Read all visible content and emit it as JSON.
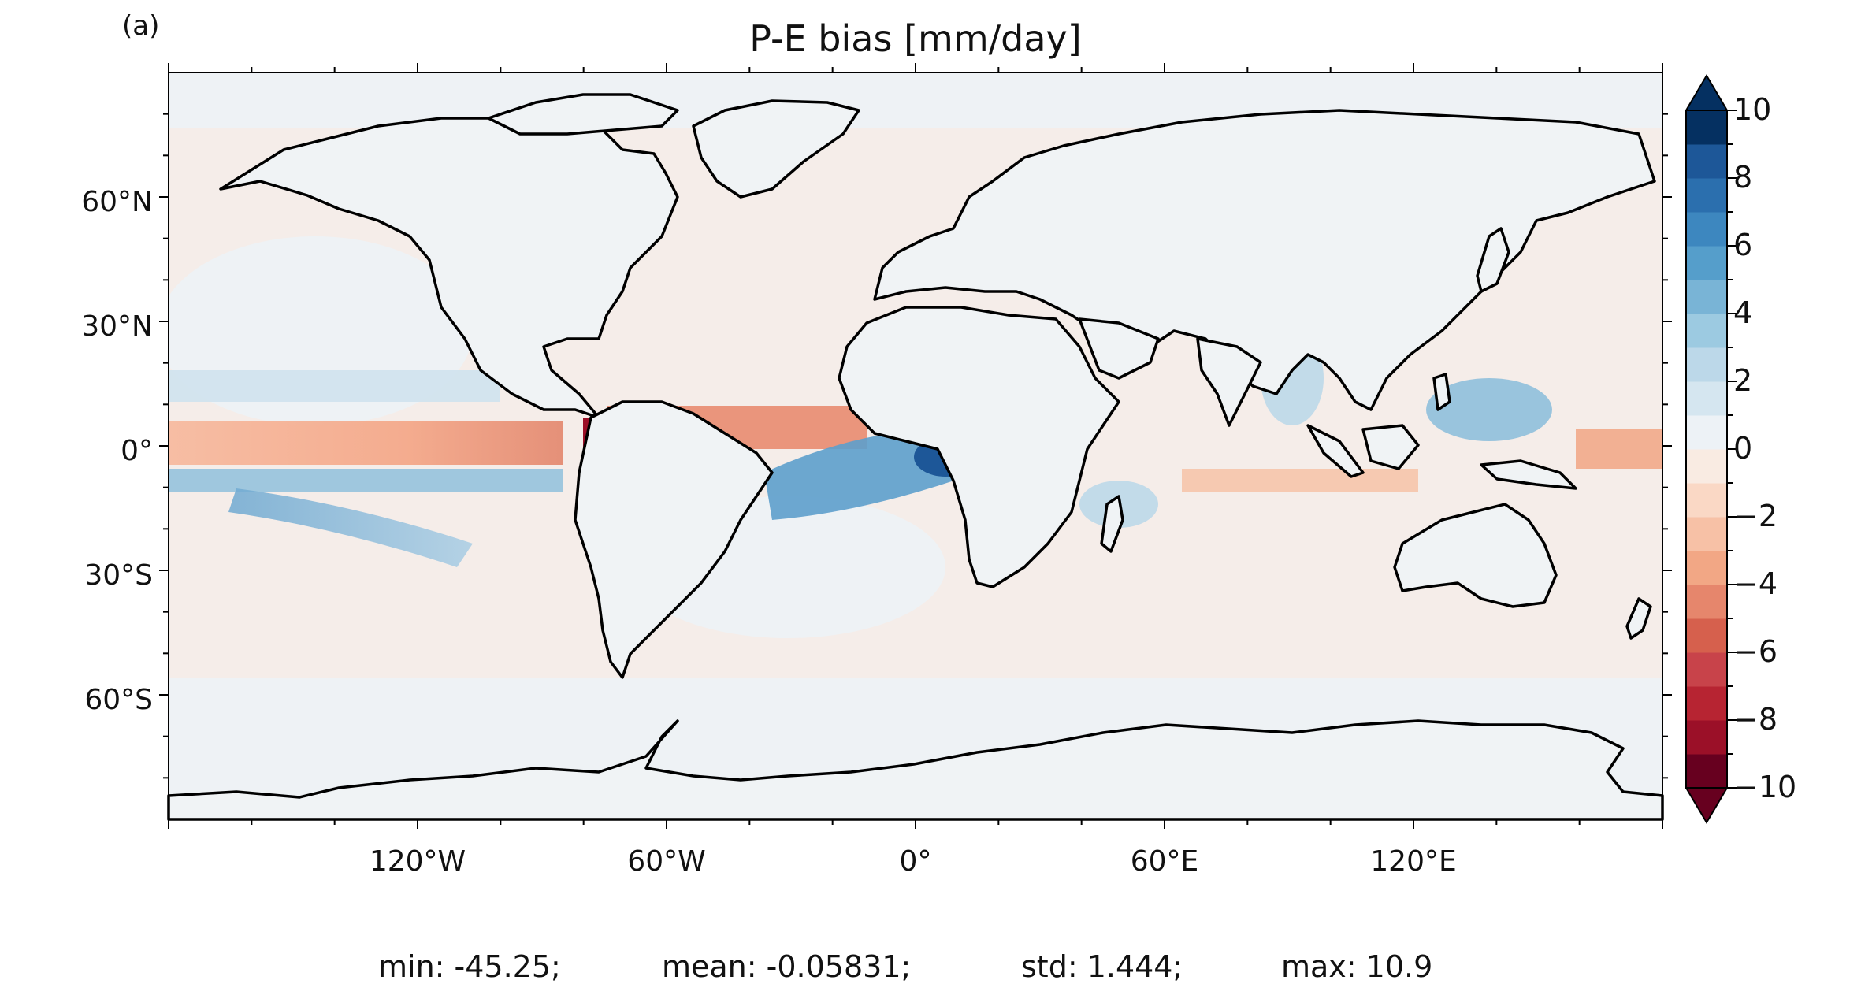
{
  "panel_label": "(a)",
  "title": "P-E bias [mm/day]",
  "x_ticks": [
    "120°W",
    "60°W",
    "0°",
    "60°E",
    "120°E"
  ],
  "y_ticks": [
    "60°N",
    "30°N",
    "0°",
    "30°S",
    "60°S"
  ],
  "colorbar": {
    "levels": [
      -10,
      -9,
      -8,
      -7,
      -6,
      -5,
      -4,
      -3,
      -2,
      -1,
      0,
      1,
      2,
      3,
      4,
      5,
      6,
      7,
      8,
      9,
      10
    ],
    "tick_labels": [
      "10",
      "8",
      "6",
      "4",
      "2",
      "0",
      "−2",
      "−4",
      "−6",
      "−8",
      "−10"
    ],
    "colors": [
      "#67001f",
      "#9b1028",
      "#b72432",
      "#c8434a",
      "#d6604d",
      "#e6866c",
      "#f2a785",
      "#f7c1a6",
      "#fad8c5",
      "#f9ebe2",
      "#edf2f6",
      "#d5e6f0",
      "#bcd8e9",
      "#9ccae1",
      "#79b4d6",
      "#559ecb",
      "#3d87bf",
      "#2b6fae",
      "#1d5798",
      "#053061"
    ],
    "extend": "both"
  },
  "stats": {
    "min": "min: -45.25;",
    "mean": "mean: -0.05831;",
    "std": "std: 1.444;",
    "max": "max: 10.9"
  },
  "colors": {
    "ocean_base": "#f4ece8",
    "coast": "#000000"
  }
}
